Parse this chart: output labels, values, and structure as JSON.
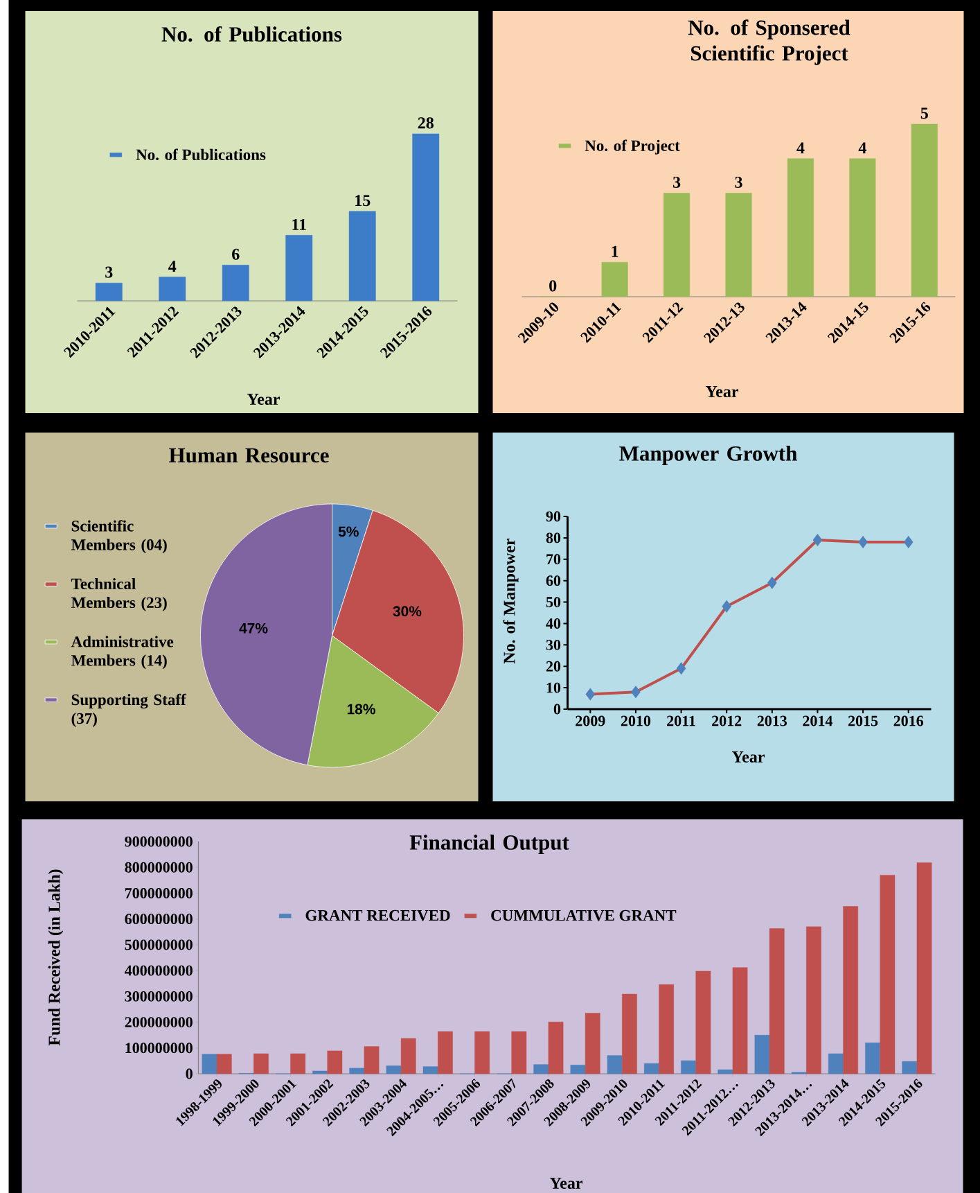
{
  "chart_data": [
    {
      "type": "bar",
      "title": "No. of Publications",
      "xlabel": "Year",
      "categories": [
        "2010-2011",
        "2011-2012",
        "2012-2013",
        "2013-2014",
        "2014-2015",
        "2015-2016"
      ],
      "series": [
        {
          "name": "No. of Publications",
          "color": "#3d7cc9",
          "values": [
            3,
            4,
            6,
            11,
            15,
            28
          ]
        }
      ],
      "data_labels": true,
      "legend": "top left"
    },
    {
      "type": "bar",
      "title": "No. of Sponsered Scientific Project",
      "xlabel": "Year",
      "categories": [
        "2009-10",
        "2010-11",
        "2011-12",
        "2012-13",
        "2013-14",
        "2014-15",
        "2015-16"
      ],
      "series": [
        {
          "name": "No. of Project",
          "color": "#9bbb59",
          "values": [
            0,
            1,
            3,
            3,
            4,
            4,
            5
          ]
        }
      ],
      "data_labels": true,
      "legend": "top left"
    },
    {
      "type": "pie",
      "title": "Human Resource",
      "categories": [
        "Scientific Members (04)",
        "Technical Members (23)",
        "Administrative Members (14)",
        "Supporting Staff (37)"
      ],
      "values": [
        5,
        30,
        18,
        47
      ],
      "colors": [
        "#4f81bd",
        "#c0504d",
        "#9bbb59",
        "#8064a2"
      ],
      "value_labels": [
        "5%",
        "30%",
        "18%",
        "47%"
      ],
      "legend": "left"
    },
    {
      "type": "line",
      "title": "Manpower Growth",
      "xlabel": "Year",
      "ylabel": "No. of Manpower",
      "categories": [
        "2009",
        "2010",
        "2011",
        "2012",
        "2013",
        "2014",
        "2015",
        "2016"
      ],
      "series": [
        {
          "color": "#c0504d",
          "values": [
            7,
            8,
            19,
            48,
            59,
            79,
            78,
            78
          ]
        }
      ],
      "ylim": [
        0,
        90
      ],
      "yticks": [
        0,
        10,
        20,
        30,
        40,
        50,
        60,
        70,
        80,
        90
      ],
      "marker": "diamond"
    },
    {
      "type": "bar",
      "title": "Financial Output",
      "xlabel": "Year",
      "ylabel": "Fund Received (in Lakh)",
      "categories": [
        "1998-1999",
        "1999-2000",
        "2000-2001",
        "2001-2002",
        "2002-2003",
        "2003-2004",
        "2004-2005…",
        "2005-2006",
        "2006-2007",
        "2007-2008",
        "2008-2009",
        "2009-2010",
        "2010-2011",
        "2011-2012",
        "2011-2012…",
        "2012-2013",
        "2013-2014…",
        "2013-2014",
        "2014-2015",
        "2015-2016"
      ],
      "series": [
        {
          "name": "GRANT RECEIVED",
          "color": "#4f81bd",
          "values": [
            76000000,
            2000000,
            0,
            11000000,
            22000000,
            31000000,
            28000000,
            0,
            0,
            36000000,
            34000000,
            71000000,
            40000000,
            51000000,
            16000000,
            150000000,
            6000000,
            78000000,
            120000000,
            48000000
          ]
        },
        {
          "name": "CUMMULATIVE GRANT",
          "color": "#c0504d",
          "values": [
            76000000,
            78000000,
            78000000,
            89000000,
            106000000,
            137000000,
            164000000,
            164000000,
            164000000,
            201000000,
            235000000,
            309000000,
            346000000,
            398000000,
            412000000,
            563000000,
            570000000,
            649000000,
            770000000,
            818000000
          ]
        }
      ],
      "ylim": [
        0,
        900000000
      ],
      "yticks": [
        0,
        100000000,
        200000000,
        300000000,
        400000000,
        500000000,
        600000000,
        700000000,
        800000000,
        900000000
      ],
      "legend": "top"
    }
  ]
}
